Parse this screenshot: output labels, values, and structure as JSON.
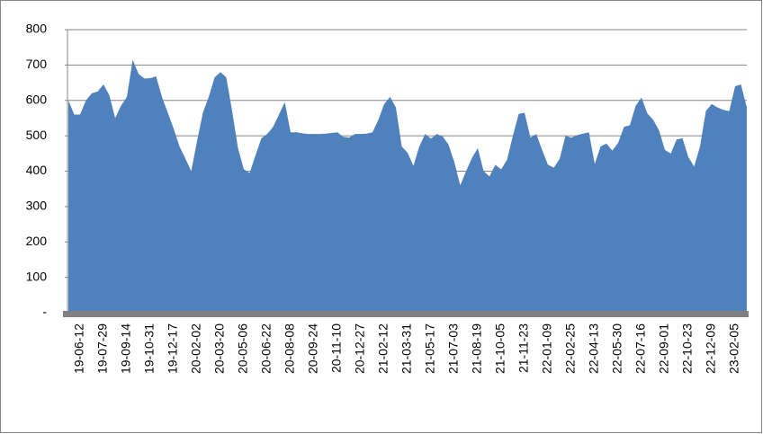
{
  "chart_data": {
    "type": "area",
    "color": "#4f81bd",
    "categories": [
      null,
      null,
      "19-06-12",
      null,
      null,
      null,
      "19-07-29",
      null,
      null,
      null,
      "19-09-14",
      null,
      null,
      null,
      "19-10-31",
      null,
      null,
      null,
      "19-12-17",
      null,
      null,
      null,
      "20-02-02",
      null,
      null,
      null,
      "20-03-20",
      null,
      null,
      null,
      "20-05-06",
      null,
      null,
      null,
      "20-06-22",
      null,
      null,
      null,
      "20-08-08",
      null,
      null,
      null,
      "20-09-24",
      null,
      null,
      null,
      "20-11-10",
      null,
      null,
      null,
      "20-12-27",
      null,
      null,
      null,
      "21-02-12",
      null,
      null,
      null,
      "21-03-31",
      null,
      null,
      null,
      "21-05-17",
      null,
      null,
      null,
      "21-07-03",
      null,
      null,
      null,
      "21-08-19",
      null,
      null,
      null,
      "21-10-05",
      null,
      null,
      null,
      "21-11-23",
      null,
      null,
      null,
      "22-01-09",
      null,
      null,
      null,
      "22-02-25",
      null,
      null,
      null,
      "22-04-13",
      null,
      null,
      null,
      "22-05-30",
      null,
      null,
      null,
      "22-07-16",
      null,
      null,
      null,
      "22-09-01",
      null,
      null,
      null,
      "22-10-23",
      null,
      null,
      null,
      "22-12-09",
      null,
      null,
      null,
      "23-02-05",
      null,
      null
    ],
    "values": [
      600,
      560,
      560,
      600,
      620,
      625,
      645,
      615,
      550,
      585,
      610,
      715,
      675,
      662,
      663,
      668,
      610,
      565,
      520,
      470,
      436,
      400,
      485,
      565,
      610,
      665,
      680,
      665,
      570,
      465,
      405,
      395,
      445,
      493,
      505,
      525,
      560,
      595,
      510,
      510,
      507,
      505,
      505,
      505,
      506,
      508,
      510,
      497,
      495,
      505,
      505,
      506,
      510,
      545,
      590,
      610,
      580,
      470,
      452,
      415,
      470,
      505,
      492,
      505,
      498,
      475,
      425,
      360,
      400,
      437,
      465,
      400,
      385,
      418,
      405,
      432,
      500,
      562,
      565,
      495,
      505,
      460,
      418,
      410,
      435,
      500,
      495,
      502,
      506,
      510,
      420,
      470,
      478,
      458,
      480,
      525,
      530,
      585,
      608,
      563,
      545,
      515,
      460,
      450,
      490,
      493,
      440,
      413,
      470,
      570,
      590,
      580,
      573,
      570,
      640,
      645,
      580
    ],
    "ylim": [
      0,
      800
    ],
    "yticks": [
      {
        "value": 0,
        "label": "-"
      },
      100,
      200,
      300,
      400,
      500,
      600,
      700,
      800
    ],
    "grid": true
  }
}
